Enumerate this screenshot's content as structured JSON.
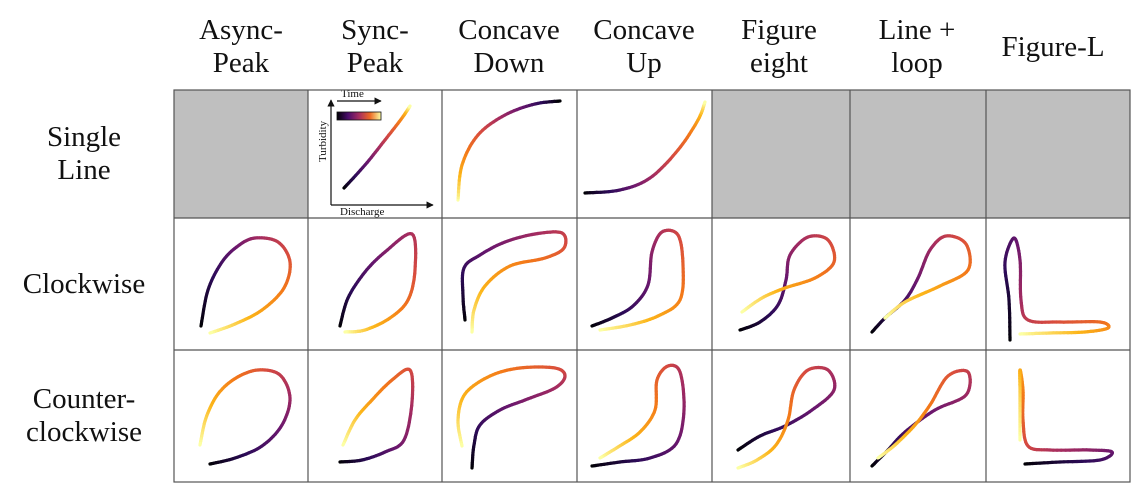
{
  "columns": [
    {
      "label": "Async-\nPeak"
    },
    {
      "label": "Sync-\nPeak"
    },
    {
      "label": "Concave\nDown"
    },
    {
      "label": "Concave\nUp"
    },
    {
      "label": "Figure\neight"
    },
    {
      "label": "Line +\nloop"
    },
    {
      "label": "Figure-L"
    }
  ],
  "rows": [
    {
      "label": "Single\nLine"
    },
    {
      "label": "Clockwise"
    },
    {
      "label": "Counter-\nclockwise"
    }
  ],
  "legend_axes": {
    "time_label": "Time",
    "y_label": "Turbidity",
    "x_label": "Discharge"
  },
  "colors": {
    "empty_cell": "#bfbfbf",
    "colormap": [
      "#000004",
      "#2d0b59",
      "#6a176e",
      "#a52c60",
      "#d84c3e",
      "#f37819",
      "#fcb519",
      "#fcffa4"
    ]
  }
}
